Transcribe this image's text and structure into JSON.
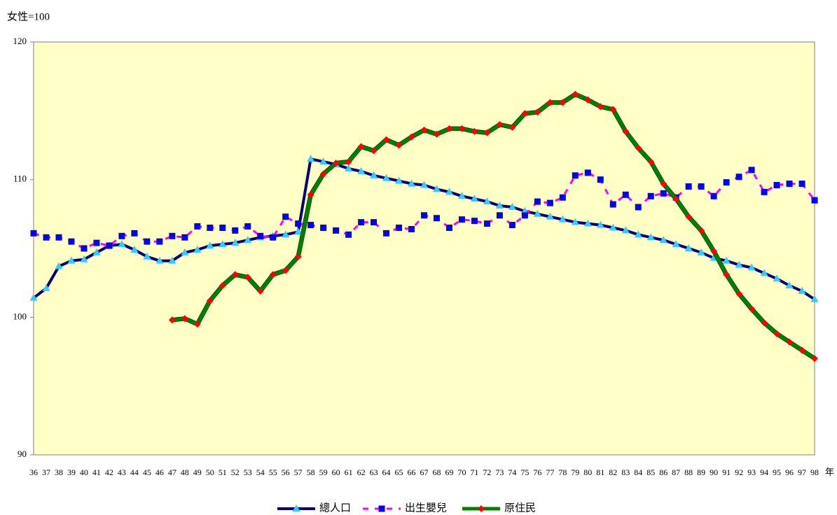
{
  "chart_data": {
    "type": "line",
    "ylabel": "女性=100",
    "xlabel": "年",
    "categories": [
      "36",
      "37",
      "38",
      "39",
      "40",
      "41",
      "42",
      "43",
      "44",
      "45",
      "46",
      "47",
      "48",
      "49",
      "50",
      "51",
      "52",
      "53",
      "54",
      "55",
      "56",
      "57",
      "58",
      "59",
      "60",
      "61",
      "62",
      "63",
      "64",
      "65",
      "66",
      "67",
      "68",
      "69",
      "70",
      "71",
      "72",
      "73",
      "74",
      "75",
      "76",
      "77",
      "78",
      "79",
      "80",
      "81",
      "82",
      "83",
      "84",
      "85",
      "86",
      "87",
      "88",
      "89",
      "90",
      "91",
      "92",
      "93",
      "94",
      "95",
      "96",
      "97",
      "98"
    ],
    "ylim": [
      90,
      120
    ],
    "yticks": [
      90,
      100,
      110,
      120
    ],
    "grid": false,
    "legend": "bottom",
    "series": [
      {
        "name": "總人口",
        "color": "#000080",
        "marker": "triangle",
        "marker_color": "#33ccff",
        "values": [
          101.4,
          102.1,
          103.7,
          104.1,
          104.2,
          104.7,
          105.2,
          105.3,
          104.9,
          104.4,
          104.1,
          104.1,
          104.7,
          104.9,
          105.2,
          105.3,
          105.4,
          105.6,
          105.8,
          105.9,
          106.0,
          106.2,
          111.5,
          111.3,
          111.1,
          110.8,
          110.6,
          110.3,
          110.1,
          109.9,
          109.7,
          109.6,
          109.3,
          109.1,
          108.8,
          108.6,
          108.4,
          108.1,
          108.0,
          107.7,
          107.5,
          107.3,
          107.1,
          106.9,
          106.8,
          106.7,
          106.5,
          106.3,
          106.0,
          105.8,
          105.6,
          105.3,
          105.0,
          104.7,
          104.3,
          104.1,
          103.8,
          103.6,
          103.2,
          102.8,
          102.3,
          101.9,
          101.3
        ]
      },
      {
        "name": "出生嬰兒",
        "color": "#ff00ff",
        "marker": "square",
        "marker_color": "#0000ff",
        "values": [
          106.1,
          105.8,
          105.8,
          105.5,
          105.0,
          105.4,
          105.2,
          105.9,
          106.1,
          105.5,
          105.5,
          105.9,
          105.8,
          106.6,
          106.5,
          106.5,
          106.3,
          106.6,
          105.9,
          105.8,
          107.3,
          106.8,
          106.7,
          106.5,
          106.3,
          106.0,
          106.9,
          106.9,
          106.1,
          106.5,
          106.4,
          107.4,
          107.2,
          106.5,
          107.1,
          107.0,
          106.8,
          107.4,
          106.7,
          107.4,
          108.4,
          108.3,
          108.7,
          110.3,
          110.5,
          110.0,
          108.2,
          108.9,
          108.0,
          108.8,
          109.0,
          108.7,
          109.5,
          109.5,
          108.8,
          109.8,
          110.2,
          110.7,
          109.1,
          109.6,
          109.7,
          109.7,
          108.5
        ]
      },
      {
        "name": "原住民",
        "color": "#008000",
        "marker": "diamond",
        "marker_color": "#ff0000",
        "values": [
          null,
          null,
          null,
          null,
          null,
          null,
          null,
          null,
          null,
          null,
          null,
          99.8,
          99.9,
          99.5,
          101.2,
          102.3,
          103.1,
          102.9,
          101.9,
          103.1,
          103.4,
          104.4,
          108.9,
          110.4,
          111.2,
          111.3,
          112.4,
          112.1,
          112.9,
          112.5,
          113.1,
          113.6,
          113.3,
          113.7,
          113.7,
          113.5,
          113.4,
          114.0,
          113.8,
          114.8,
          114.9,
          115.6,
          115.6,
          116.2,
          115.8,
          115.3,
          115.1,
          113.5,
          112.3,
          111.3,
          109.7,
          108.6,
          107.3,
          106.3,
          104.8,
          103.1,
          101.7,
          100.6,
          99.6,
          98.8,
          98.2,
          97.6,
          97.0
        ]
      }
    ]
  }
}
